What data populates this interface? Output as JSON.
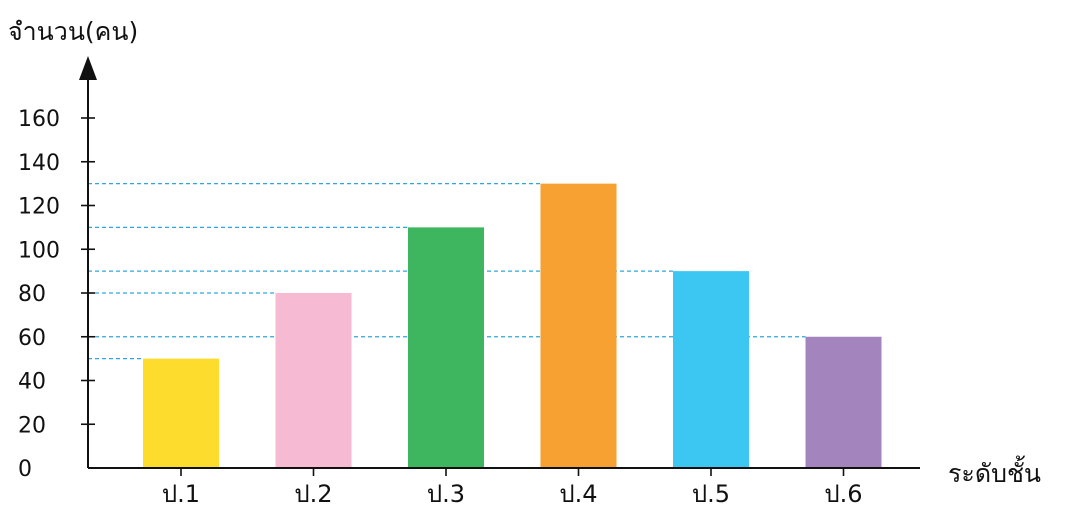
{
  "chart_data": {
    "type": "bar",
    "ylabel": "จำนวน(คน)",
    "xlabel": "ระดับชั้น",
    "categories": [
      "ป.1",
      "ป.2",
      "ป.3",
      "ป.4",
      "ป.5",
      "ป.6"
    ],
    "values": [
      50,
      80,
      110,
      130,
      90,
      60
    ],
    "colors": [
      "#FDDC2E",
      "#F6BAD2",
      "#3DB65F",
      "#F7A132",
      "#3CC6F2",
      "#A384BD"
    ],
    "y_ticks": [
      0,
      20,
      40,
      60,
      80,
      100,
      120,
      140,
      160
    ],
    "ylim": [
      0,
      160
    ],
    "grid": false,
    "guide_lines": "dashed cyan lines from y-axis to top of each bar",
    "guide_color": "#2EA8D8"
  }
}
